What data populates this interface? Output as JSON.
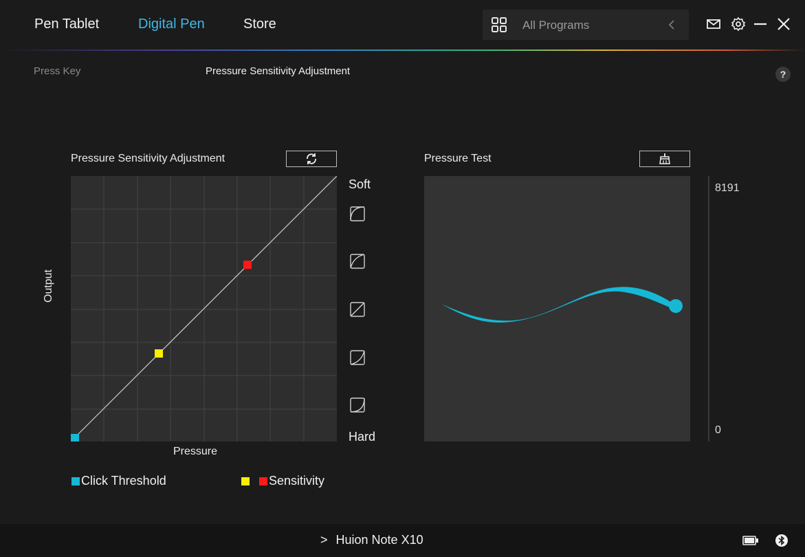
{
  "nav": {
    "tabs": [
      {
        "label": "Pen Tablet"
      },
      {
        "label": "Digital Pen"
      },
      {
        "label": "Store"
      }
    ],
    "program_selector": {
      "label": "All Programs"
    }
  },
  "subnav": {
    "press_key": "Press Key",
    "pressure_sensitivity": "Pressure Sensitivity Adjustment",
    "help": "?"
  },
  "curve_panel": {
    "title": "Pressure Sensitivity Adjustment",
    "xlabel": "Pressure",
    "ylabel": "Output",
    "soft_label": "Soft",
    "hard_label": "Hard"
  },
  "test_panel": {
    "title": "Pressure Test",
    "scale_max": "8191",
    "scale_min": "0"
  },
  "legend": {
    "click_threshold": "Click Threshold",
    "sensitivity": "Sensitivity"
  },
  "footer": {
    "device_name": "Huion Note X10",
    "chevron": ">"
  },
  "colors": {
    "accent": "#3fb8e8",
    "click_threshold": "#16b8d6",
    "sensitivity_low": "#ffee00",
    "sensitivity_high": "#ff1a1a",
    "stroke": "#16b8d6"
  },
  "icons": [
    "grid-apps-icon",
    "chevron-left-icon",
    "mail-icon",
    "gear-icon",
    "minimize-icon",
    "close-icon",
    "reset-icon",
    "clear-icon",
    "battery-icon",
    "bluetooth-icon"
  ]
}
